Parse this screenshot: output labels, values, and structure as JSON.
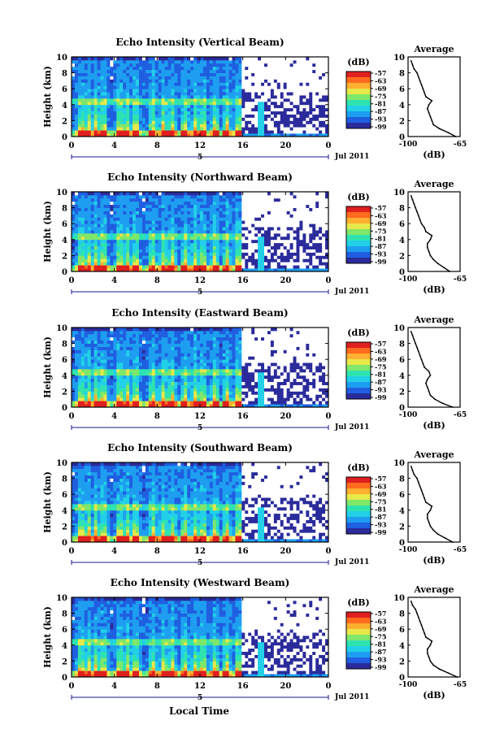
{
  "figure": {
    "x_axis_label": "Local Time",
    "date_label": "Jul 2011",
    "day_marker": "5",
    "y_axis_label": "Height (km)",
    "colorbar_title": "(dB)",
    "colorbar_ticks": [
      "-57",
      "-63",
      "-69",
      "-75",
      "-81",
      "-87",
      "-93",
      "-99"
    ],
    "avg_title": "Average",
    "avg_xlabel": "(dB)",
    "avg_xticks": [
      "-100",
      "-65"
    ],
    "palette": [
      "#2b2b9c",
      "#1f5fe0",
      "#1e9ef0",
      "#22d0e8",
      "#2fe3b0",
      "#7fe76a",
      "#e7e84a",
      "#ffb030",
      "#ff6b1e",
      "#e01f1f"
    ],
    "missing_color": "#ffffff"
  },
  "chart_data": [
    {
      "type": "heatmap",
      "title": "Echo Intensity (Vertical Beam)",
      "xlabel": "",
      "ylabel": "Height (km)",
      "xlim": [
        0,
        24
      ],
      "ylim": [
        0,
        10
      ],
      "xticks": [
        "0",
        "4",
        "8",
        "12",
        "16",
        "20",
        "0"
      ],
      "yticks": [
        "0",
        "2",
        "4",
        "6",
        "8",
        "10"
      ],
      "colorbar": {
        "label": "(dB)",
        "range": [
          -99,
          -57
        ]
      },
      "average_profile": {
        "title": "Average",
        "xlabel": "(dB)",
        "xlim": [
          -100,
          -65
        ],
        "height_km": [
          0,
          0.5,
          1,
          1.5,
          2,
          2.5,
          3,
          3.5,
          4,
          4.5,
          5,
          5.5,
          6,
          6.5,
          7,
          7.5,
          8,
          8.5,
          9,
          9.5
        ],
        "db": [
          -68,
          -73,
          -79,
          -83,
          -84,
          -85,
          -86,
          -87,
          -86,
          -84,
          -88,
          -89,
          -90,
          -91,
          -92,
          -93,
          -94,
          -96,
          -97,
          -98
        ]
      }
    },
    {
      "type": "heatmap",
      "title": "Echo Intensity (Northward Beam)",
      "xlabel": "",
      "ylabel": "Height (km)",
      "xlim": [
        0,
        24
      ],
      "ylim": [
        0,
        10
      ],
      "xticks": [
        "0",
        "4",
        "8",
        "12",
        "16",
        "20",
        "0"
      ],
      "yticks": [
        "0",
        "2",
        "4",
        "6",
        "8",
        "10"
      ],
      "colorbar": {
        "label": "(dB)",
        "range": [
          -99,
          -57
        ]
      },
      "average_profile": {
        "title": "Average",
        "xlabel": "(dB)",
        "xlim": [
          -100,
          -65
        ],
        "height_km": [
          0,
          0.5,
          1,
          1.5,
          2,
          2.5,
          3,
          3.5,
          4,
          4.5,
          5,
          5.5,
          6,
          6.5,
          7,
          7.5,
          8,
          8.5,
          9,
          9.5
        ],
        "db": [
          -72,
          -76,
          -80,
          -83,
          -85,
          -86,
          -87,
          -87,
          -85,
          -84,
          -88,
          -89,
          -91,
          -92,
          -93,
          -94,
          -95,
          -96,
          -97,
          -98
        ]
      }
    },
    {
      "type": "heatmap",
      "title": "Echo Intensity (Eastward Beam)",
      "xlabel": "",
      "ylabel": "Height (km)",
      "xlim": [
        0,
        24
      ],
      "ylim": [
        0,
        10
      ],
      "xticks": [
        "0",
        "4",
        "8",
        "12",
        "16",
        "20",
        "0"
      ],
      "yticks": [
        "0",
        "2",
        "4",
        "6",
        "8",
        "10"
      ],
      "colorbar": {
        "label": "(dB)",
        "range": [
          -99,
          -57
        ]
      },
      "average_profile": {
        "title": "Average",
        "xlabel": "(dB)",
        "xlim": [
          -100,
          -65
        ],
        "height_km": [
          0,
          0.5,
          1,
          1.5,
          2,
          2.5,
          3,
          3.5,
          4,
          4.5,
          5,
          5.5,
          6,
          6.5,
          7,
          7.5,
          8,
          8.5,
          9,
          9.5
        ],
        "db": [
          -70,
          -77,
          -82,
          -85,
          -86,
          -87,
          -88,
          -87,
          -85,
          -86,
          -89,
          -90,
          -91,
          -92,
          -93,
          -94,
          -95,
          -96,
          -97,
          -98
        ]
      }
    },
    {
      "type": "heatmap",
      "title": "Echo Intensity (Southward Beam)",
      "xlabel": "",
      "ylabel": "Height (km)",
      "xlim": [
        0,
        24
      ],
      "ylim": [
        0,
        10
      ],
      "xticks": [
        "0",
        "4",
        "8",
        "12",
        "16",
        "20",
        "0"
      ],
      "yticks": [
        "0",
        "2",
        "4",
        "6",
        "8",
        "10"
      ],
      "colorbar": {
        "label": "(dB)",
        "range": [
          -99,
          -57
        ]
      },
      "average_profile": {
        "title": "Average",
        "xlabel": "(dB)",
        "xlim": [
          -100,
          -65
        ],
        "height_km": [
          0,
          0.5,
          1,
          1.5,
          2,
          2.5,
          3,
          3.5,
          4,
          4.5,
          5,
          5.5,
          6,
          6.5,
          7,
          7.5,
          8,
          8.5,
          9,
          9.5
        ],
        "db": [
          -70,
          -75,
          -80,
          -83,
          -85,
          -86,
          -87,
          -87,
          -85,
          -84,
          -88,
          -89,
          -90,
          -91,
          -92,
          -93,
          -94,
          -96,
          -97,
          -98
        ]
      }
    },
    {
      "type": "heatmap",
      "title": "Echo Intensity (Westward Beam)",
      "xlabel": "Local Time",
      "ylabel": "Height (km)",
      "xlim": [
        0,
        24
      ],
      "ylim": [
        0,
        10
      ],
      "xticks": [
        "0",
        "4",
        "8",
        "12",
        "16",
        "20",
        "0"
      ],
      "yticks": [
        "0",
        "2",
        "4",
        "6",
        "8",
        "10"
      ],
      "colorbar": {
        "label": "(dB)",
        "range": [
          -99,
          -57
        ]
      },
      "average_profile": {
        "title": "Average",
        "xlabel": "(dB)",
        "xlim": [
          -100,
          -65
        ],
        "height_km": [
          0,
          0.5,
          1,
          1.5,
          2,
          2.5,
          3,
          3.5,
          4,
          4.5,
          5,
          5.5,
          6,
          6.5,
          7,
          7.5,
          8,
          8.5,
          9,
          9.5
        ],
        "db": [
          -67,
          -73,
          -79,
          -83,
          -85,
          -86,
          -87,
          -87,
          -85,
          -84,
          -88,
          -89,
          -90,
          -91,
          -92,
          -93,
          -94,
          -95,
          -97,
          -98
        ]
      }
    }
  ]
}
